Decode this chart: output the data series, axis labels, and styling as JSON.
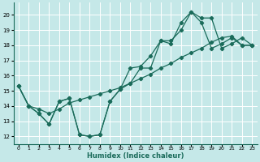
{
  "xlabel": "Humidex (Indice chaleur)",
  "bg_color": "#c5e8e8",
  "grid_color": "#ffffff",
  "line_color": "#1a6b5a",
  "xlim": [
    -0.5,
    23.5
  ],
  "ylim": [
    11.5,
    20.8
  ],
  "xticks": [
    0,
    1,
    2,
    3,
    4,
    5,
    6,
    7,
    8,
    9,
    10,
    11,
    12,
    13,
    14,
    15,
    16,
    17,
    18,
    19,
    20,
    21,
    22,
    23
  ],
  "yticks": [
    12,
    13,
    14,
    15,
    16,
    17,
    18,
    19,
    20
  ],
  "line1_x": [
    0,
    1,
    2,
    3,
    4,
    5,
    6,
    7,
    8,
    9,
    10,
    11,
    12,
    13,
    14,
    15,
    16,
    17,
    18,
    19,
    20,
    21,
    22,
    23
  ],
  "line1_y": [
    15.3,
    14.0,
    13.5,
    12.8,
    14.3,
    14.5,
    12.1,
    12.0,
    12.1,
    14.3,
    15.1,
    16.5,
    16.6,
    17.3,
    18.3,
    18.3,
    19.0,
    20.2,
    19.8,
    19.8,
    17.8,
    18.1,
    18.5,
    18.0
  ],
  "line2_x": [
    0,
    1,
    2,
    3,
    4,
    5,
    6,
    7,
    8,
    9,
    10,
    11,
    12,
    13,
    14,
    15,
    16,
    17,
    18,
    19,
    20,
    21,
    22,
    23
  ],
  "line2_y": [
    15.3,
    14.0,
    13.5,
    12.8,
    14.3,
    14.5,
    12.1,
    12.0,
    12.1,
    14.3,
    15.1,
    15.5,
    16.5,
    16.5,
    18.3,
    18.1,
    19.5,
    20.2,
    19.5,
    17.8,
    18.1,
    18.5,
    18.0,
    18.0
  ],
  "line3_x": [
    0,
    1,
    2,
    3,
    4,
    5,
    6,
    7,
    8,
    9,
    10,
    11,
    12,
    13,
    14,
    15,
    16,
    17,
    18,
    19,
    20,
    21,
    22,
    23
  ],
  "line3_y": [
    15.3,
    14.0,
    13.8,
    13.5,
    13.8,
    14.2,
    14.4,
    14.6,
    14.8,
    15.0,
    15.2,
    15.5,
    15.8,
    16.1,
    16.5,
    16.8,
    17.2,
    17.5,
    17.8,
    18.2,
    18.5,
    18.6,
    18.0,
    18.0
  ]
}
